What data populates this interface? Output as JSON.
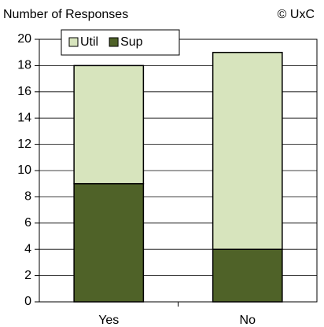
{
  "chart_data": {
    "type": "stacked_bar",
    "title": "Number of Responses",
    "annotation": "© UxC",
    "categories": [
      "Yes",
      "No"
    ],
    "series": [
      {
        "name": "Util",
        "color": "#d7e4bd",
        "values": [
          9,
          15
        ]
      },
      {
        "name": "Sup",
        "color": "#4f6228",
        "values": [
          9,
          4
        ]
      }
    ],
    "ylim": [
      0,
      20
    ],
    "yticks": [
      0,
      2,
      4,
      6,
      8,
      10,
      12,
      14,
      16,
      18,
      20
    ],
    "grid": true,
    "legend": "upper left"
  }
}
